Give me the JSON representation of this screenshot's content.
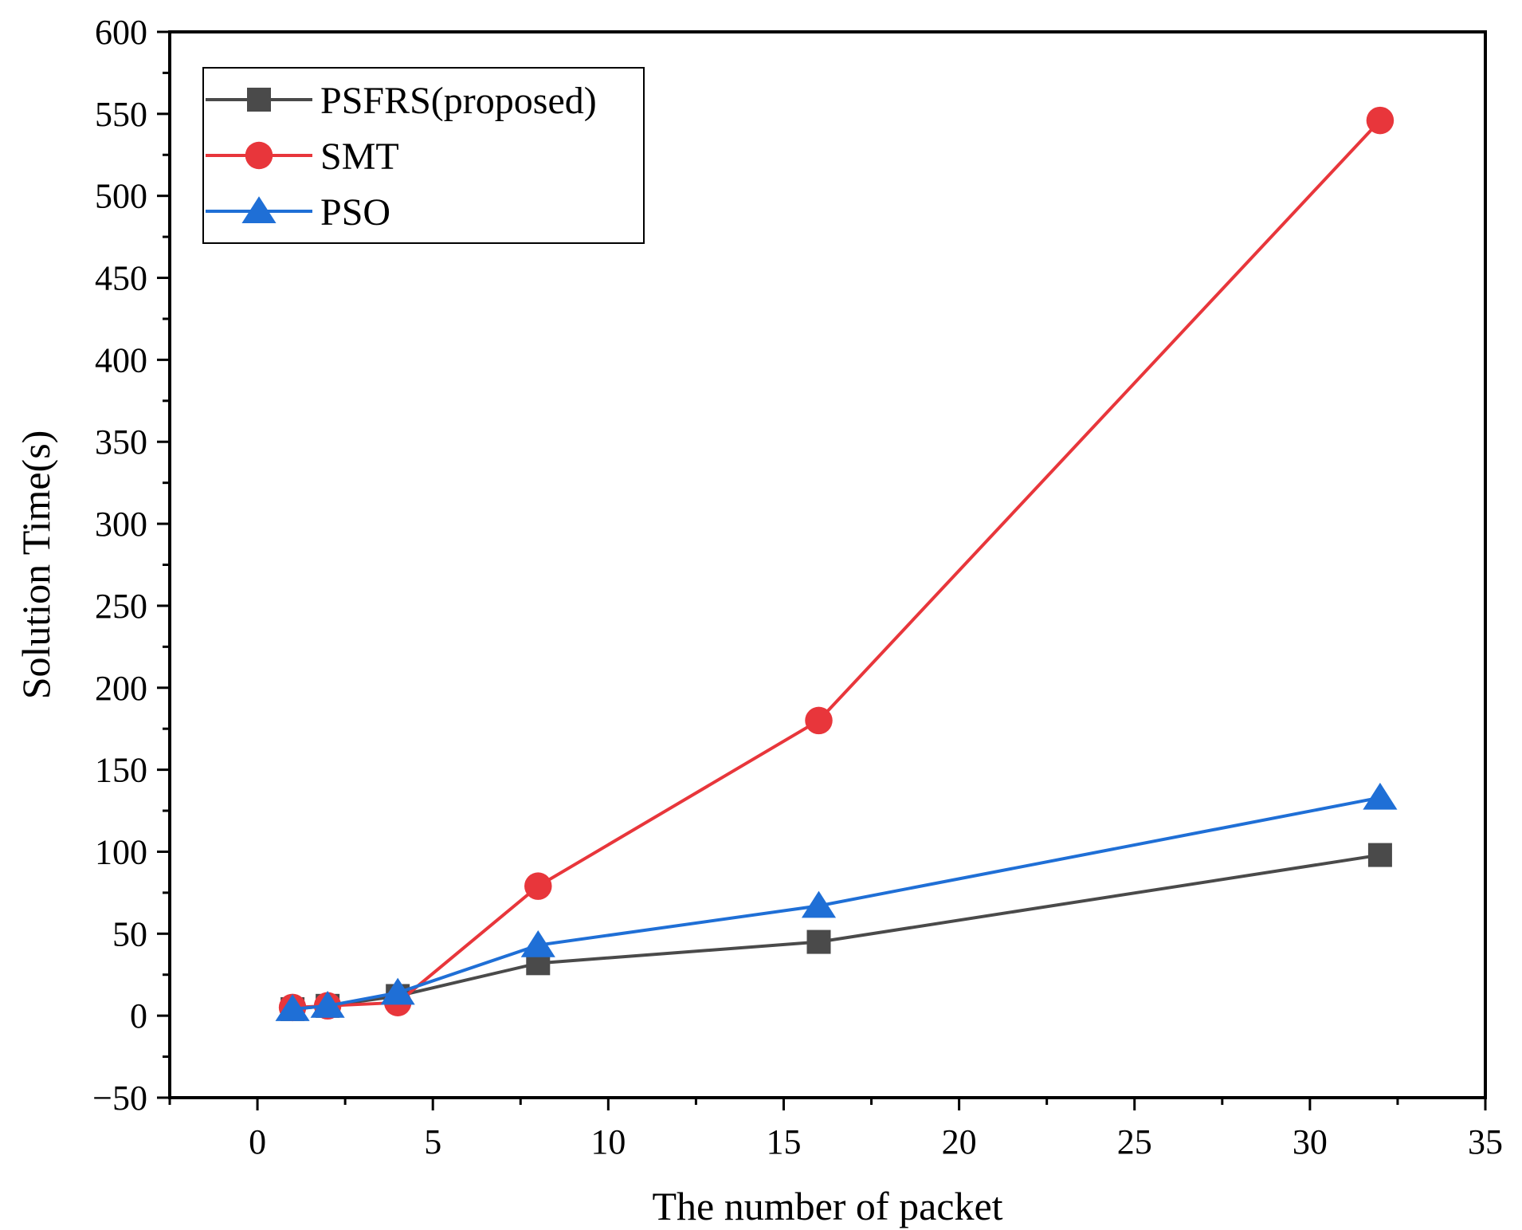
{
  "chart_data": {
    "type": "line",
    "title": "",
    "xlabel": "The number of packet",
    "ylabel": "Solution Time(s)",
    "xlim": [
      -2.5,
      35
    ],
    "ylim": [
      -50,
      600
    ],
    "xticks": [
      0,
      5,
      10,
      15,
      20,
      25,
      30,
      35
    ],
    "yticks": [
      -50,
      0,
      50,
      100,
      150,
      200,
      250,
      300,
      350,
      400,
      450,
      500,
      550,
      600
    ],
    "x_tick_labels": [
      "0",
      "5",
      "10",
      "15",
      "20",
      "25",
      "30",
      "35"
    ],
    "y_tick_labels": [
      "−50",
      "0",
      "50",
      "100",
      "150",
      "200",
      "250",
      "300",
      "350",
      "400",
      "450",
      "500",
      "550",
      "600"
    ],
    "x": [
      1,
      2,
      4,
      8,
      16,
      32
    ],
    "grid": false,
    "legend_position": "top-left",
    "series": [
      {
        "name": "PSFRS(proposed)",
        "marker": "square",
        "color": "#4a4a4a",
        "values": [
          4,
          6,
          12,
          32,
          45,
          98
        ]
      },
      {
        "name": "SMT",
        "marker": "circle",
        "color": "#e8363b",
        "values": [
          5,
          6,
          8,
          79,
          180,
          546
        ]
      },
      {
        "name": "PSO",
        "marker": "triangle",
        "color": "#1f6fd6",
        "values": [
          4,
          6,
          14,
          43,
          67,
          133
        ]
      }
    ]
  }
}
